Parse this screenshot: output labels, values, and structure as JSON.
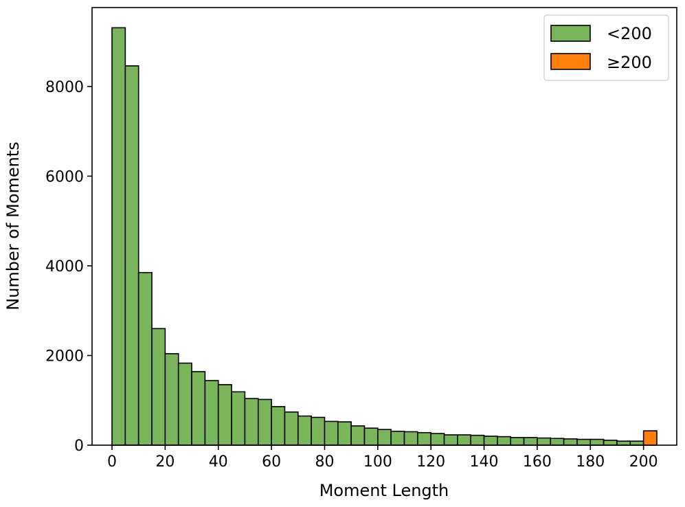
{
  "chart_data": {
    "type": "bar",
    "title": "",
    "xlabel": "Moment Length",
    "ylabel": "Number of Moments",
    "xlim": [
      -7.5,
      212.5
    ],
    "ylim": [
      0,
      9760
    ],
    "x_ticks": [
      "0",
      "20",
      "40",
      "60",
      "80",
      "100",
      "120",
      "140",
      "160",
      "180",
      "200"
    ],
    "y_ticks": [
      "0",
      "2000",
      "4000",
      "6000",
      "8000"
    ],
    "bin_width": 5,
    "grid": false,
    "legend_position": "top-right",
    "series": [
      {
        "name": "<200",
        "color": "#7ab55c",
        "bin_starts": [
          0,
          5,
          10,
          15,
          20,
          25,
          30,
          35,
          40,
          45,
          50,
          55,
          60,
          65,
          70,
          75,
          80,
          85,
          90,
          95,
          100,
          105,
          110,
          115,
          120,
          125,
          130,
          135,
          140,
          145,
          150,
          155,
          160,
          165,
          170,
          175,
          180,
          185,
          190,
          195
        ],
        "values": [
          9310,
          8460,
          3850,
          2600,
          2040,
          1830,
          1640,
          1440,
          1350,
          1190,
          1040,
          1020,
          860,
          740,
          650,
          620,
          530,
          520,
          430,
          380,
          350,
          310,
          300,
          280,
          260,
          230,
          230,
          220,
          200,
          190,
          170,
          170,
          160,
          150,
          140,
          130,
          130,
          110,
          90,
          90
        ]
      },
      {
        "name": "≥200",
        "color": "#ff7f0e",
        "bin_starts": [
          200
        ],
        "values": [
          320
        ]
      }
    ]
  }
}
